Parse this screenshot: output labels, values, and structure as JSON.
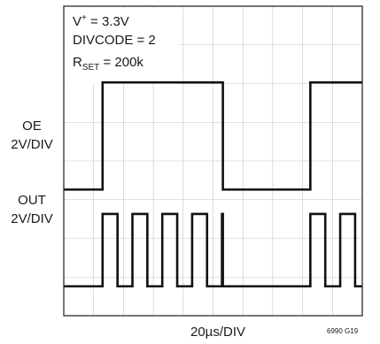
{
  "chart_data": {
    "type": "line",
    "title": "",
    "conditions": {
      "vplus_prefix": "V",
      "vplus_sup": "+",
      "vplus_value": " = 3.3V",
      "divcode": "DIVCODE = 2",
      "rset_prefix": "R",
      "rset_sub": "SET",
      "rset_value": " = 200k"
    },
    "xlabel": "20µs/DIV",
    "x_divisions": 10,
    "y_divisions": 8,
    "grid": true,
    "figure_code": "6990 G19",
    "series": [
      {
        "name": "OE",
        "scale": "2V/DIV",
        "high_div": 1.97,
        "low_div": 4.74,
        "high_intervals_div": [
          [
            1.3,
            5.33
          ],
          [
            8.26,
            10.5
          ]
        ]
      },
      {
        "name": "OUT",
        "scale": "2V/DIV",
        "high_div": 5.37,
        "low_div": 7.24,
        "pulse_period_div": 1.0,
        "pulse_width_div": 0.5,
        "burst_intervals_div": [
          [
            1.3,
            5.33
          ],
          [
            8.26,
            10.5
          ]
        ]
      }
    ]
  }
}
